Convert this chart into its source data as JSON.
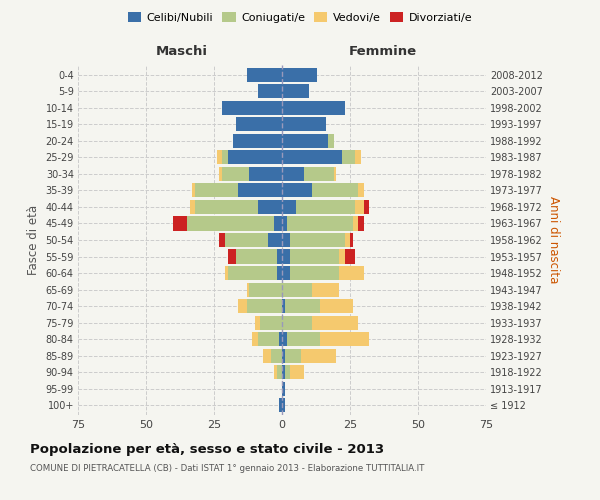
{
  "age_groups": [
    "100+",
    "95-99",
    "90-94",
    "85-89",
    "80-84",
    "75-79",
    "70-74",
    "65-69",
    "60-64",
    "55-59",
    "50-54",
    "45-49",
    "40-44",
    "35-39",
    "30-34",
    "25-29",
    "20-24",
    "15-19",
    "10-14",
    "5-9",
    "0-4"
  ],
  "birth_years": [
    "≤ 1912",
    "1913-1917",
    "1918-1922",
    "1923-1927",
    "1928-1932",
    "1933-1937",
    "1938-1942",
    "1943-1947",
    "1948-1952",
    "1953-1957",
    "1958-1962",
    "1963-1967",
    "1968-1972",
    "1973-1977",
    "1978-1982",
    "1983-1987",
    "1988-1992",
    "1993-1997",
    "1998-2002",
    "2003-2007",
    "2008-2012"
  ],
  "maschi": {
    "celibi": [
      1,
      0,
      0,
      0,
      1,
      0,
      0,
      0,
      2,
      2,
      5,
      3,
      9,
      16,
      12,
      20,
      18,
      17,
      22,
      9,
      13
    ],
    "coniugati": [
      0,
      0,
      2,
      4,
      8,
      8,
      13,
      12,
      18,
      15,
      16,
      32,
      23,
      16,
      10,
      2,
      0,
      0,
      0,
      0,
      0
    ],
    "vedovi": [
      0,
      0,
      1,
      3,
      2,
      2,
      3,
      1,
      1,
      0,
      0,
      0,
      2,
      1,
      1,
      2,
      0,
      0,
      0,
      0,
      0
    ],
    "divorziati": [
      0,
      0,
      0,
      0,
      0,
      0,
      0,
      0,
      0,
      3,
      2,
      5,
      0,
      0,
      0,
      0,
      0,
      0,
      0,
      0,
      0
    ]
  },
  "femmine": {
    "nubili": [
      1,
      1,
      1,
      1,
      2,
      0,
      1,
      0,
      3,
      3,
      3,
      2,
      5,
      11,
      8,
      22,
      17,
      16,
      23,
      10,
      13
    ],
    "coniugate": [
      0,
      0,
      2,
      6,
      12,
      11,
      13,
      11,
      18,
      18,
      20,
      24,
      22,
      17,
      11,
      5,
      2,
      0,
      0,
      0,
      0
    ],
    "vedove": [
      0,
      0,
      5,
      13,
      18,
      17,
      12,
      10,
      9,
      2,
      2,
      2,
      3,
      2,
      1,
      2,
      0,
      0,
      0,
      0,
      0
    ],
    "divorziate": [
      0,
      0,
      0,
      0,
      0,
      0,
      0,
      0,
      0,
      4,
      1,
      2,
      2,
      0,
      0,
      0,
      0,
      0,
      0,
      0,
      0
    ]
  },
  "colors": {
    "celibi": "#3a6fa8",
    "coniugati": "#b5c98a",
    "vedovi": "#f5c96e",
    "divorziati": "#cc2222"
  },
  "xlim": 75,
  "title": "Popolazione per età, sesso e stato civile - 2013",
  "subtitle": "COMUNE DI PIETRACATELLA (CB) - Dati ISTAT 1° gennaio 2013 - Elaborazione TUTTITALIA.IT",
  "ylabel_left": "Fasce di età",
  "ylabel_right": "Anni di nascita",
  "xlabel_maschi": "Maschi",
  "xlabel_femmine": "Femmine",
  "bg_color": "#f5f5f0",
  "grid_color": "#cccccc"
}
